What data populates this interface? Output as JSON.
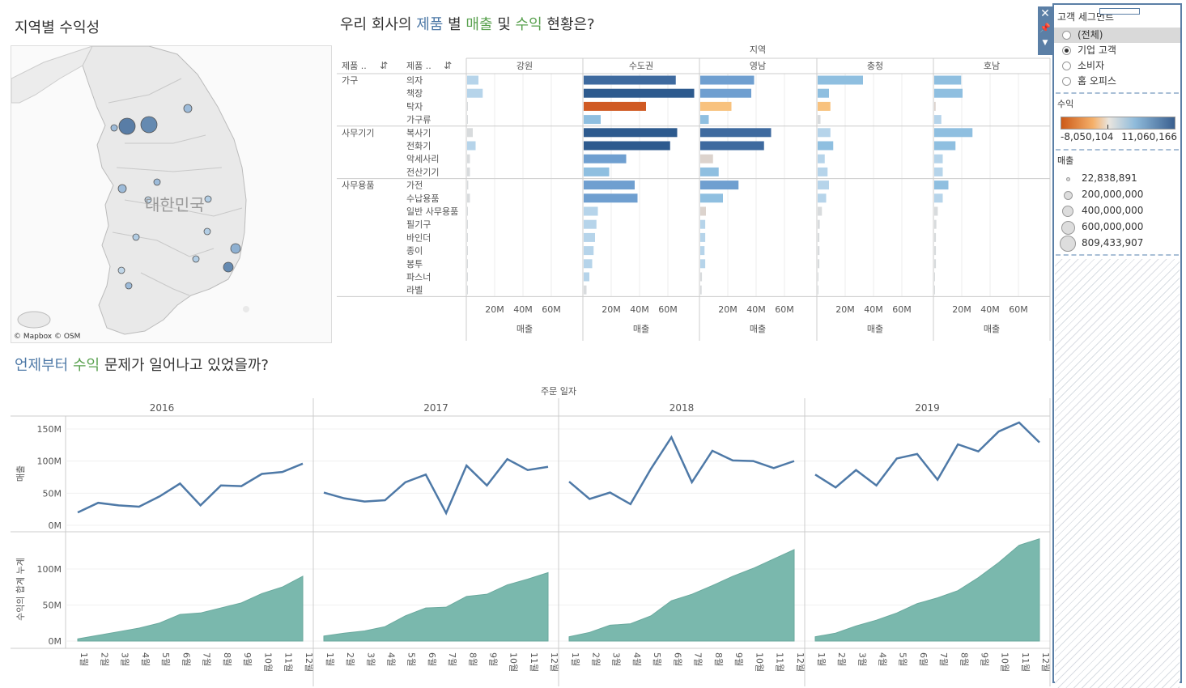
{
  "map": {
    "title": "지역별 수익성",
    "country_label": "대한민국",
    "attribution": "© Mapbox © OSM"
  },
  "top_title": {
    "p1": "우리 회사의 ",
    "w1": "제품",
    "p2": " 별 ",
    "w2": "매출",
    "p3": " 및 ",
    "w3": "수익",
    "p4": " 현황은?"
  },
  "bottom_title": {
    "w1": "언제부터",
    "p1": " ",
    "w2": "수익",
    "p2": " 문제가 일어나고 있었을까?"
  },
  "filter": {
    "title": "고객 세그먼트",
    "options": [
      "(전체)",
      "기업 고객",
      "소비자",
      "홈 오피스"
    ],
    "selected": "기업 고객"
  },
  "color_legend": {
    "title": "수익",
    "min": "-8,050,104",
    "max": "11,060,166"
  },
  "size_legend": {
    "title": "매출",
    "items": [
      "22,838,891",
      "200,000,000",
      "400,000,000",
      "600,000,000",
      "809,433,907"
    ]
  },
  "colors": {
    "line": "#4e79a7",
    "area": "#7ab8ad",
    "neg_strong": "#d05a23",
    "neg_light": "#f8c27e",
    "grid": "#ddd"
  },
  "chart_data": [
    {
      "type": "bar",
      "title": "우리 회사의 제품 별 매출 및 수익 현황은?",
      "column_header": "지역",
      "row_headers": [
        "제품 ..",
        "제품 .."
      ],
      "regions": [
        "강원",
        "수도권",
        "영남",
        "충청",
        "호남"
      ],
      "xlabel": "매출",
      "xticks": [
        "20M",
        "40M",
        "60M"
      ],
      "xlim": [
        0,
        80000000
      ],
      "groups": [
        {
          "name": "가구",
          "items": [
            "의자",
            "책장",
            "탁자",
            "가구류"
          ]
        },
        {
          "name": "사무기기",
          "items": [
            "복사기",
            "전화기",
            "악세사리",
            "전산기기"
          ]
        },
        {
          "name": "사무용품",
          "items": [
            "가전",
            "수납용품",
            "일반 사무용품",
            "필기구",
            "바인더",
            "종이",
            "봉투",
            "파스너",
            "라벨"
          ]
        }
      ],
      "sales_millions": {
        "강원": [
          8,
          11,
          0.5,
          0.5,
          4,
          6,
          2,
          2,
          0.8,
          2,
          0.5,
          0.4,
          0.4,
          0.3,
          0.3,
          0.2,
          0.2
        ],
        "수도권": [
          65,
          78,
          44,
          12,
          66,
          61,
          30,
          18,
          36,
          38,
          10,
          9,
          8,
          7,
          6,
          4,
          2
        ],
        "영남": [
          38,
          36,
          22,
          6,
          50,
          45,
          9,
          13,
          27,
          16,
          4,
          3.5,
          3.5,
          3,
          3.5,
          1.2,
          1
        ],
        "충청": [
          32,
          8,
          9,
          2,
          9,
          11,
          5,
          7,
          8,
          6,
          3,
          1.5,
          1.2,
          1.3,
          1.2,
          0.5,
          0.3
        ],
        "호남": [
          19,
          20,
          1,
          5,
          27,
          15,
          6,
          6,
          10,
          6,
          2.5,
          1.5,
          1.2,
          1.2,
          1.2,
          0.5,
          0.3
        ]
      },
      "profit_class": {
        "강원": [
          "p1",
          "p1",
          "p0",
          "p0",
          "p0",
          "p1",
          "p0",
          "p0",
          "p0",
          "p0",
          "p0",
          "p0",
          "p0",
          "p0",
          "p0",
          "p0",
          "p0"
        ],
        "수도권": [
          "p4",
          "p5",
          "n2",
          "p2",
          "p5",
          "p5",
          "p3",
          "p2",
          "p3",
          "p3",
          "p1",
          "p1",
          "p1",
          "p1",
          "p1",
          "p1",
          "p0"
        ],
        "영남": [
          "p3",
          "p3",
          "n1",
          "p2",
          "p4",
          "p4",
          "z",
          "p2",
          "p3",
          "p2",
          "z",
          "p1",
          "p1",
          "p1",
          "p1",
          "p0",
          "p0"
        ],
        "충청": [
          "p2",
          "p2",
          "n1",
          "p0",
          "p1",
          "p2",
          "p1",
          "p1",
          "p1",
          "p1",
          "p0",
          "p0",
          "p0",
          "p0",
          "p0",
          "p0",
          "p0"
        ],
        "호남": [
          "p2",
          "p2",
          "z",
          "p1",
          "p2",
          "p2",
          "p1",
          "p1",
          "p2",
          "p1",
          "p0",
          "p0",
          "p0",
          "p0",
          "p0",
          "p0",
          "p0"
        ]
      }
    },
    {
      "type": "line",
      "title": "언제부터 수익 문제가 일어나고 있었을까?",
      "column_header": "주문 일자",
      "years": [
        "2016",
        "2017",
        "2018",
        "2019"
      ],
      "months": [
        "1월",
        "2월",
        "3월",
        "4월",
        "5월",
        "6월",
        "7월",
        "8월",
        "9월",
        "10월",
        "11월",
        "12월"
      ],
      "ylabel": "매출",
      "yticks": [
        "0M",
        "50M",
        "100M",
        "150M"
      ],
      "ylim": [
        0,
        160000000
      ],
      "series": [
        {
          "name": "매출",
          "year": "2016",
          "values": [
            20,
            35,
            31,
            29,
            45,
            65,
            31,
            62,
            61,
            80,
            83,
            96
          ]
        },
        {
          "name": "매출",
          "year": "2017",
          "values": [
            51,
            42,
            37,
            39,
            67,
            79,
            19,
            93,
            62,
            103,
            86,
            91
          ]
        },
        {
          "name": "매출",
          "year": "2018",
          "values": [
            68,
            41,
            51,
            33,
            88,
            137,
            67,
            116,
            101,
            100,
            89,
            100
          ]
        },
        {
          "name": "매출",
          "year": "2019",
          "values": [
            79,
            59,
            86,
            62,
            104,
            111,
            71,
            126,
            115,
            146,
            160,
            129
          ]
        }
      ]
    },
    {
      "type": "area",
      "ylabel": "수익의 합계 누계",
      "yticks": [
        "0M",
        "50M",
        "100M"
      ],
      "ylim": [
        0,
        145000000
      ],
      "series": [
        {
          "name": "수익의 합계 누계",
          "year": "2016",
          "values": [
            3,
            8,
            13,
            18,
            25,
            37,
            39,
            46,
            53,
            66,
            75,
            90
          ]
        },
        {
          "name": "수익의 합계 누계",
          "year": "2017",
          "values": [
            7,
            11,
            14,
            20,
            35,
            46,
            47,
            62,
            65,
            78,
            86,
            95
          ]
        },
        {
          "name": "수익의 합계 누계",
          "year": "2018",
          "values": [
            6,
            12,
            22,
            24,
            35,
            56,
            65,
            77,
            90,
            101,
            114,
            127
          ]
        },
        {
          "name": "수익의 합계 누계",
          "year": "2019",
          "values": [
            6,
            11,
            21,
            29,
            39,
            52,
            60,
            70,
            88,
            109,
            133,
            142
          ]
        }
      ]
    }
  ]
}
